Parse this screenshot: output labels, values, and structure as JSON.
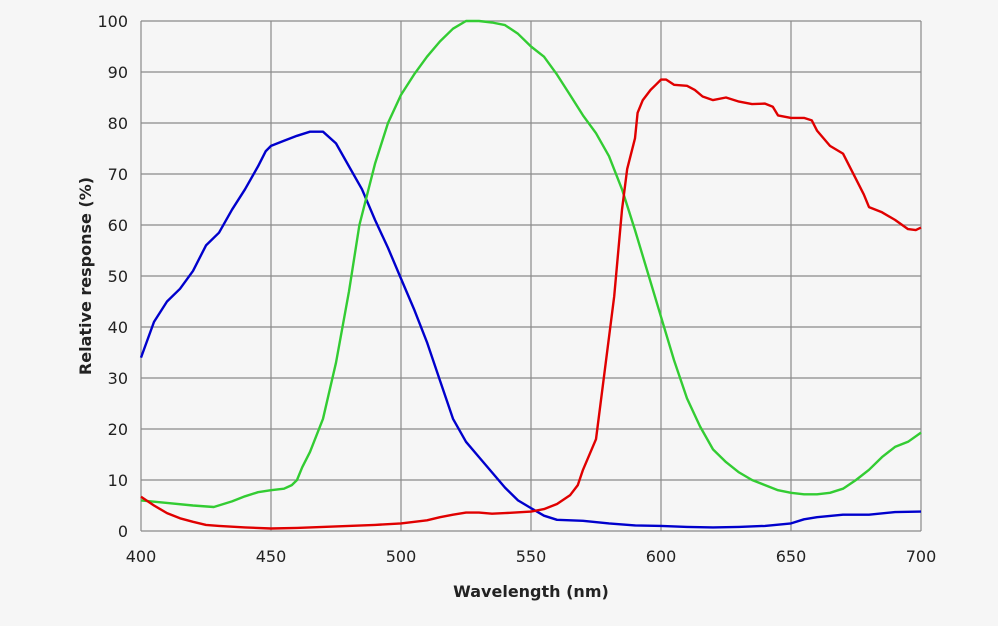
{
  "chart_data": {
    "type": "line",
    "title": "",
    "xlabel": "Wavelength (nm)",
    "ylabel": "Relative response (%)",
    "xlim": [
      400,
      700
    ],
    "ylim": [
      0,
      100
    ],
    "xticks": [
      400,
      450,
      500,
      550,
      600,
      650,
      700
    ],
    "yticks": [
      0,
      10,
      20,
      30,
      40,
      50,
      60,
      70,
      80,
      90,
      100
    ],
    "grid": true,
    "series": [
      {
        "name": "blue",
        "color": "#0000cc",
        "points": [
          [
            400,
            34
          ],
          [
            405,
            41
          ],
          [
            410,
            45
          ],
          [
            415,
            47.5
          ],
          [
            420,
            51
          ],
          [
            425,
            56
          ],
          [
            430,
            58.5
          ],
          [
            435,
            63
          ],
          [
            440,
            67
          ],
          [
            445,
            71.5
          ],
          [
            448,
            74.5
          ],
          [
            450,
            75.5
          ],
          [
            455,
            76.5
          ],
          [
            460,
            77.5
          ],
          [
            465,
            78.3
          ],
          [
            470,
            78.3
          ],
          [
            475,
            76
          ],
          [
            480,
            71.5
          ],
          [
            485,
            67
          ],
          [
            490,
            61
          ],
          [
            495,
            55.5
          ],
          [
            500,
            49.5
          ],
          [
            505,
            43.5
          ],
          [
            510,
            37
          ],
          [
            515,
            29.5
          ],
          [
            520,
            22
          ],
          [
            525,
            17.5
          ],
          [
            530,
            14.5
          ],
          [
            535,
            11.5
          ],
          [
            540,
            8.5
          ],
          [
            545,
            6
          ],
          [
            550,
            4.5
          ],
          [
            555,
            3
          ],
          [
            560,
            2.2
          ],
          [
            570,
            2
          ],
          [
            580,
            1.5
          ],
          [
            590,
            1.1
          ],
          [
            600,
            1
          ],
          [
            610,
            0.8
          ],
          [
            620,
            0.7
          ],
          [
            630,
            0.8
          ],
          [
            640,
            1
          ],
          [
            650,
            1.5
          ],
          [
            655,
            2.3
          ],
          [
            660,
            2.7
          ],
          [
            670,
            3.2
          ],
          [
            680,
            3.2
          ],
          [
            690,
            3.7
          ],
          [
            700,
            3.8
          ]
        ]
      },
      {
        "name": "green",
        "color": "#33cc33",
        "points": [
          [
            400,
            6
          ],
          [
            410,
            5.5
          ],
          [
            420,
            5
          ],
          [
            428,
            4.7
          ],
          [
            435,
            5.8
          ],
          [
            440,
            6.8
          ],
          [
            445,
            7.6
          ],
          [
            450,
            8
          ],
          [
            455,
            8.3
          ],
          [
            458,
            9
          ],
          [
            460,
            10
          ],
          [
            462,
            12.5
          ],
          [
            465,
            15.5
          ],
          [
            470,
            22
          ],
          [
            475,
            33
          ],
          [
            480,
            47
          ],
          [
            484,
            60
          ],
          [
            490,
            72
          ],
          [
            495,
            80
          ],
          [
            500,
            85.5
          ],
          [
            505,
            89.5
          ],
          [
            510,
            93
          ],
          [
            515,
            96
          ],
          [
            520,
            98.5
          ],
          [
            525,
            100
          ],
          [
            530,
            100
          ],
          [
            535,
            99.7
          ],
          [
            540,
            99.2
          ],
          [
            545,
            97.5
          ],
          [
            550,
            95
          ],
          [
            555,
            93
          ],
          [
            560,
            89.5
          ],
          [
            565,
            85.5
          ],
          [
            570,
            81.5
          ],
          [
            575,
            78
          ],
          [
            580,
            73.5
          ],
          [
            585,
            67
          ],
          [
            590,
            59
          ],
          [
            595,
            50.5
          ],
          [
            600,
            42
          ],
          [
            605,
            33.5
          ],
          [
            610,
            26
          ],
          [
            615,
            20.5
          ],
          [
            620,
            16
          ],
          [
            625,
            13.5
          ],
          [
            630,
            11.5
          ],
          [
            635,
            10
          ],
          [
            640,
            9
          ],
          [
            645,
            8
          ],
          [
            650,
            7.5
          ],
          [
            655,
            7.2
          ],
          [
            660,
            7.2
          ],
          [
            665,
            7.5
          ],
          [
            670,
            8.3
          ],
          [
            675,
            10
          ],
          [
            680,
            12
          ],
          [
            685,
            14.5
          ],
          [
            690,
            16.5
          ],
          [
            695,
            17.5
          ],
          [
            700,
            19.3
          ]
        ]
      },
      {
        "name": "red",
        "color": "#e00000",
        "points": [
          [
            400,
            6.7
          ],
          [
            405,
            5
          ],
          [
            410,
            3.5
          ],
          [
            415,
            2.5
          ],
          [
            420,
            1.8
          ],
          [
            425,
            1.2
          ],
          [
            430,
            1
          ],
          [
            440,
            0.7
          ],
          [
            450,
            0.5
          ],
          [
            460,
            0.6
          ],
          [
            470,
            0.8
          ],
          [
            480,
            1
          ],
          [
            490,
            1.2
          ],
          [
            500,
            1.5
          ],
          [
            510,
            2.1
          ],
          [
            515,
            2.7
          ],
          [
            520,
            3.2
          ],
          [
            525,
            3.6
          ],
          [
            530,
            3.6
          ],
          [
            535,
            3.4
          ],
          [
            540,
            3.5
          ],
          [
            550,
            3.8
          ],
          [
            555,
            4.3
          ],
          [
            560,
            5.3
          ],
          [
            565,
            7
          ],
          [
            568,
            9
          ],
          [
            570,
            12
          ],
          [
            575,
            18
          ],
          [
            578,
            30
          ],
          [
            582,
            46
          ],
          [
            585,
            63
          ],
          [
            587,
            71
          ],
          [
            590,
            77
          ],
          [
            591,
            82
          ],
          [
            593,
            84.5
          ],
          [
            596,
            86.5
          ],
          [
            598,
            87.5
          ],
          [
            600,
            88.5
          ],
          [
            602,
            88.5
          ],
          [
            605,
            87.5
          ],
          [
            610,
            87.3
          ],
          [
            613,
            86.5
          ],
          [
            616,
            85.2
          ],
          [
            620,
            84.5
          ],
          [
            625,
            85
          ],
          [
            630,
            84.2
          ],
          [
            635,
            83.7
          ],
          [
            640,
            83.8
          ],
          [
            643,
            83.2
          ],
          [
            645,
            81.5
          ],
          [
            650,
            81
          ],
          [
            655,
            81
          ],
          [
            658,
            80.5
          ],
          [
            660,
            78.5
          ],
          [
            665,
            75.5
          ],
          [
            670,
            74
          ],
          [
            675,
            69
          ],
          [
            678,
            66
          ],
          [
            680,
            63.5
          ],
          [
            685,
            62.5
          ],
          [
            690,
            61
          ],
          [
            695,
            59.2
          ],
          [
            698,
            59
          ],
          [
            700,
            59.5
          ]
        ]
      }
    ]
  }
}
